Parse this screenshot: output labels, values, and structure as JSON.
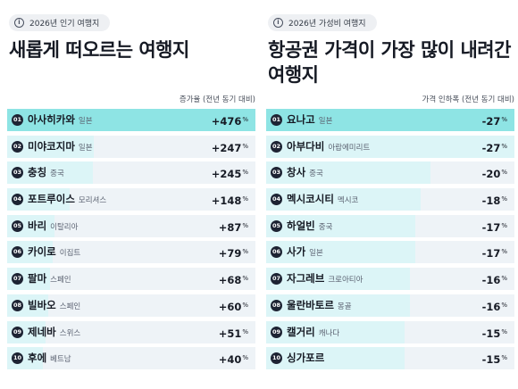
{
  "chart_data": [
    {
      "type": "bar",
      "badge": "2026년 인기 여행지",
      "title": "새롭게 떠오르는 여행지",
      "metric_label": "증가율 (전년 동기 대비)",
      "unit": "%",
      "rows": [
        {
          "rank": "01",
          "name": "아사히카와",
          "country": "일본",
          "value": 476,
          "display": "+476"
        },
        {
          "rank": "02",
          "name": "미야코지마",
          "country": "일본",
          "value": 247,
          "display": "+247"
        },
        {
          "rank": "03",
          "name": "충칭",
          "country": "중국",
          "value": 245,
          "display": "+245"
        },
        {
          "rank": "04",
          "name": "포트루이스",
          "country": "모리셔스",
          "value": 148,
          "display": "+148"
        },
        {
          "rank": "05",
          "name": "바리",
          "country": "이탈리아",
          "value": 87,
          "display": "+87"
        },
        {
          "rank": "06",
          "name": "카이로",
          "country": "이집트",
          "value": 79,
          "display": "+79"
        },
        {
          "rank": "07",
          "name": "팔마",
          "country": "스페인",
          "value": 68,
          "display": "+68"
        },
        {
          "rank": "08",
          "name": "빌바오",
          "country": "스페인",
          "value": 60,
          "display": "+60"
        },
        {
          "rank": "09",
          "name": "제네바",
          "country": "스위스",
          "value": 51,
          "display": "+51"
        },
        {
          "rank": "10",
          "name": "후에",
          "country": "베트남",
          "value": 40,
          "display": "+40"
        }
      ]
    },
    {
      "type": "bar",
      "badge": "2026년 가성비 여행지",
      "title": "항공권 가격이 가장 많이 내려간 여행지",
      "metric_label": "가격 인하폭 (전년 동기 대비)",
      "unit": "%",
      "rows": [
        {
          "rank": "01",
          "name": "요나고",
          "country": "일본",
          "value": -27,
          "display": "-27"
        },
        {
          "rank": "02",
          "name": "아부다비",
          "country": "아랍에미리트",
          "value": -27,
          "display": "-27"
        },
        {
          "rank": "03",
          "name": "창사",
          "country": "중국",
          "value": -20,
          "display": "-20"
        },
        {
          "rank": "04",
          "name": "멕시코시티",
          "country": "멕시코",
          "value": -18,
          "display": "-18"
        },
        {
          "rank": "05",
          "name": "하얼빈",
          "country": "중국",
          "value": -17,
          "display": "-17"
        },
        {
          "rank": "06",
          "name": "사가",
          "country": "일본",
          "value": -17,
          "display": "-17"
        },
        {
          "rank": "07",
          "name": "자그레브",
          "country": "크로아티아",
          "value": -16,
          "display": "-16"
        },
        {
          "rank": "08",
          "name": "울란바토르",
          "country": "몽골",
          "value": -16,
          "display": "-16"
        },
        {
          "rank": "09",
          "name": "캘거리",
          "country": "캐나다",
          "value": -15,
          "display": "-15"
        },
        {
          "rank": "10",
          "name": "싱가포르",
          "country": "",
          "value": -15,
          "display": "-15"
        }
      ]
    }
  ],
  "colors": {
    "highlight_bar": "#8ee4e4",
    "bar": "#dcf5f7",
    "row_background": "#eef3f7",
    "rank_circle": "#1d2333"
  }
}
